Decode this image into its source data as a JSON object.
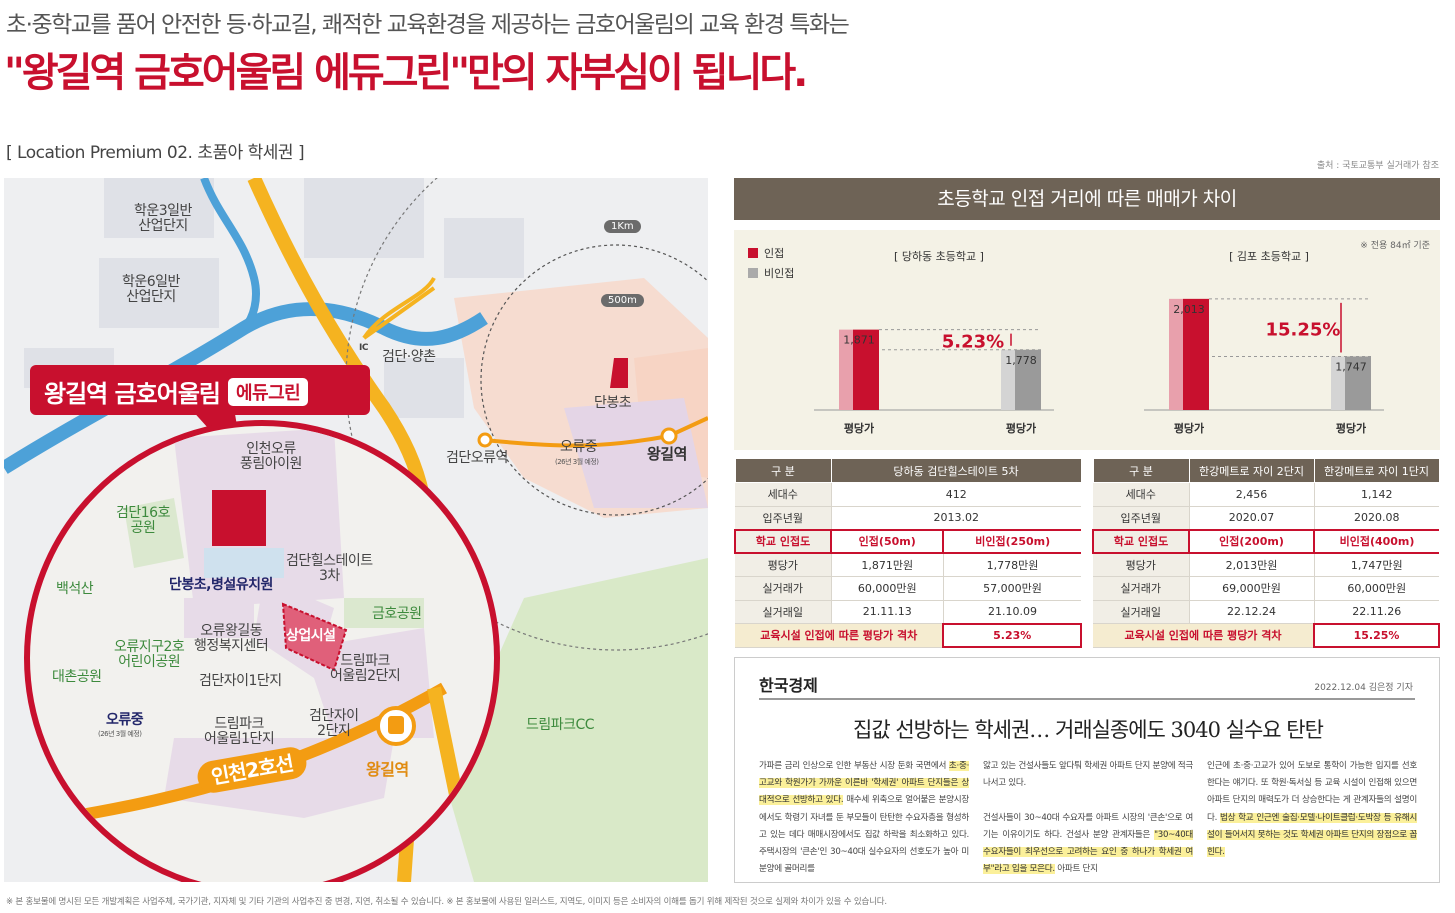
{
  "lead": "초·중학교를 품어 안전한 등·하교길, 쾌적한 교육환경을 제공하는 금호어울림의 교육 환경 특화는",
  "headline": "\"왕길역 금호어울림 에듀그린\"만의 자부심이 됩니다.",
  "section_title": "[ Location Premium 02. 초품아 학세권 ]",
  "source_note": "출처 : 국토교통부 실거래가 참조",
  "map": {
    "callout_main": "왕길역 금호어울림",
    "callout_tag": "에듀그린",
    "labels": {
      "hakun3": "학운3일반\n산업단지",
      "hakun6": "학운6일반\n산업단지",
      "ring_1km": "1Km",
      "ring_500m": "500m",
      "ic": "IC",
      "geomdan_yangchon": "검단·양촌",
      "danbong": "단봉초",
      "oryu_mid": "오류중",
      "oryu_mid_note": "(26년 3월 예정)",
      "geomdan_oryu_stn": "검단오류역",
      "wanggil_stn_upper": "왕길역",
      "incheon_oryu_pungnim": "인천오류\n풍림아이원",
      "geomdan16": "검단16호\n공원",
      "baekseoksan": "백석산",
      "danbong_kinder": "단봉초,병설유치원",
      "geomdan_hillstate3": "검단힐스테이트\n3차",
      "geumho_park": "금호공원",
      "commercial": "상업시설",
      "oryu_wanggil_center": "오류왕길동\n행정복지센터",
      "oryu_park2": "오류지구2호\n어린이공원",
      "daechon_park": "대촌공원",
      "dreampark2": "드림파크\n어울림2단지",
      "geomdan_xi1": "검단자이1단지",
      "geomdan_xi2": "검단자이\n2단지",
      "oryu_mid_lower": "오류중",
      "oryu_mid_lower_note": "(26년 3월 예정)",
      "dreampark1": "드림파크\n어울림1단지",
      "line2": "인천2호선",
      "wanggil_stn_lower": "왕길역",
      "dreampark_cc": "드림파크CC"
    }
  },
  "chart_header": "초등학교 인접 거리에 따른 매매가 차이",
  "chart_data": [
    {
      "type": "bar",
      "title": "[ 당하동 초등학교 ]",
      "categories": [
        "평당가",
        "평당가"
      ],
      "series": [
        {
          "name": "인접",
          "values": [
            1871,
            null
          ]
        },
        {
          "name": "비인접",
          "values": [
            null,
            1778
          ]
        }
      ],
      "data_labels": [
        "1,871",
        "1,778"
      ],
      "annotation": "5.23%",
      "ylim": [
        0,
        2100
      ]
    },
    {
      "type": "bar",
      "title": "[ 김포 초등학교 ]",
      "categories": [
        "평당가",
        "평당가"
      ],
      "series": [
        {
          "name": "인접",
          "values": [
            2013,
            null
          ]
        },
        {
          "name": "비인접",
          "values": [
            null,
            1747
          ]
        }
      ],
      "data_labels": [
        "2,013",
        "1,747"
      ],
      "annotation": "15.25%",
      "ylim": [
        0,
        2100
      ]
    }
  ],
  "chart_legend": {
    "adjacent": "인접",
    "non_adjacent": "비인접",
    "note": "※ 전용 84㎡ 기준"
  },
  "colors": {
    "accent": "#c8102e",
    "brown": "#6e6356",
    "orange": "#f39c12"
  },
  "table_left": {
    "headers": [
      "구 분",
      "당하동 검단힐스테이트 5차"
    ],
    "rows": {
      "households": [
        "세대수",
        "412"
      ],
      "movein": [
        "입주년월",
        "2013.02"
      ],
      "school": [
        "학교 인접도",
        "인접(50m)",
        "비인접(250m)"
      ],
      "price_py": [
        "평당가",
        "1,871만원",
        "1,778만원"
      ],
      "trade_price": [
        "실거래가",
        "60,000만원",
        "57,000만원"
      ],
      "trade_date": [
        "실거래일",
        "21.11.13",
        "21.10.09"
      ],
      "diff": [
        "교육시설 인접에 따른 평당가 격차",
        "5.23%"
      ]
    }
  },
  "table_right": {
    "headers": [
      "구 분",
      "한강메트로 자이 2단지",
      "한강메트로 자이 1단지"
    ],
    "rows": {
      "households": [
        "세대수",
        "2,456",
        "1,142"
      ],
      "movein": [
        "입주년월",
        "2020.07",
        "2020.08"
      ],
      "school": [
        "학교 인접도",
        "인접(200m)",
        "비인접(400m)"
      ],
      "price_py": [
        "평당가",
        "2,013만원",
        "1,747만원"
      ],
      "trade_price": [
        "실거래가",
        "69,000만원",
        "60,000만원"
      ],
      "trade_date": [
        "실거래일",
        "22.12.24",
        "22.11.26"
      ],
      "diff": [
        "교육시설 인접에 따른 평당가 격차",
        "15.25%"
      ]
    }
  },
  "news": {
    "logo": "한국경제",
    "meta": "2022.12.04 김은정 기자",
    "title": "집값 선방하는 학세권… 거래실종에도 3040 실수요 탄탄",
    "col1_a": "가파른 금리 인상으로 인한 부동산 시장 둔화 국면에서 ",
    "col1_hl": "초·중·고교와 학원가가 가까운 이른바 '학세권' 아파트 단지들은 상대적으로 선방하고 있다.",
    "col1_b": " 매수세 위축으로 얼어붙은 분양시장에서도 학령기 자녀를 둔 부모들이 탄탄한 수요자층을 형성하고 있는 데다 매매시장에서도 집값 하락을 최소화하고 있다. 주택시장의 '큰손'인 30~40대 실수요자의 선호도가 높아 미분양에 골머리를",
    "col2_a": "앓고 있는 건설사들도 앞다퉈 학세권 아파트 단지 분양에 적극 나서고 있다.",
    "col2_b": "건설사들이 30~40대 수요자를 아파트 시장의 '큰손'으로 여기는 이유이기도 하다. 건설사 분양 관계자들은 ",
    "col2_hl": "\"30~40대 수요자들이 최우선으로 고려하는 요인 중 하나가 학세권 여부\"라고 입을 모은다.",
    "col2_c": " 아파트 단지",
    "col3_a": "인근에 초·중·고교가 있어 도보로 통학이 가능한 입지를 선호한다는 얘기다. 또 학원·독서실 등 교육 시설이 인접해 있으면 아파트 단지의 매력도가 더 상승한다는 게 관계자들의 설명이다. ",
    "col3_hl": "법상 학교 인근엔 술집·모텔·나이트클럽·도박장 등 유해시설이 들어서지 못하는 것도 학세권 아파트 단지의 장점으로 꼽힌다."
  },
  "footnote": "※ 본 홍보물에 명시된 모든 개발계획은 사업주체, 국가기관, 지자체 및 기타 기관의 사업추진 중 변경, 지연, 취소될 수 있습니다. ※ 본 홍보물에 사용된 일러스트, 지역도, 이미지 등은 소비자의 이해를 돕기 위해 제작된 것으로 실제와 차이가 있을 수 있습니다."
}
